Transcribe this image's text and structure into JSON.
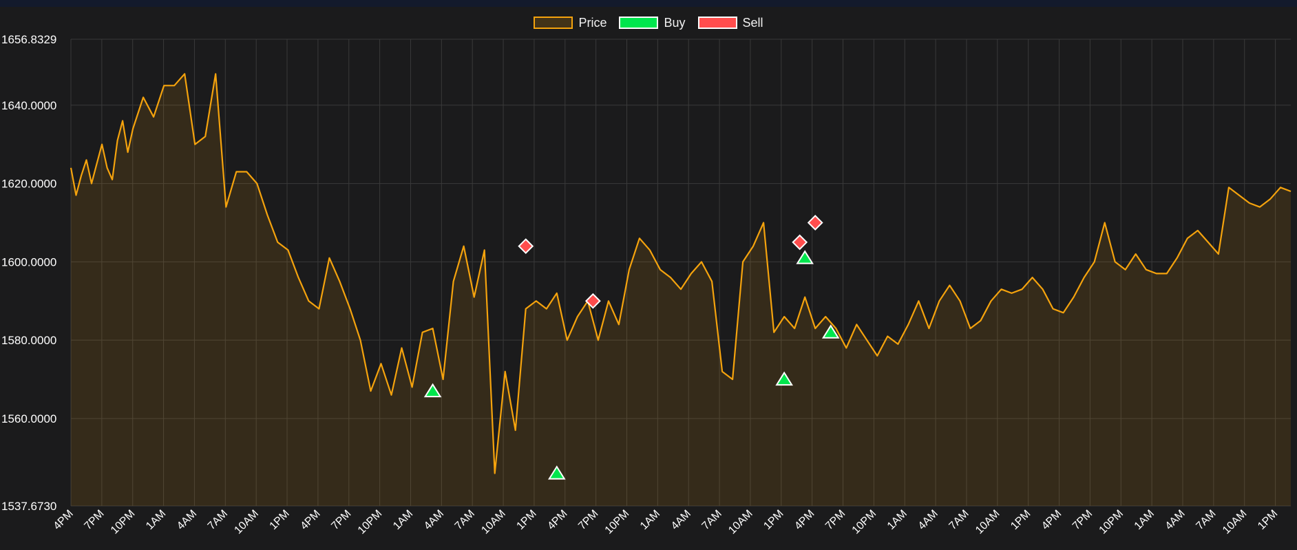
{
  "legend": [
    {
      "label": "Price",
      "color": "#f5a30d",
      "fill": "rgba(245,163,13,0.18)"
    },
    {
      "label": "Buy",
      "color": "#ffffff",
      "fill": "#00e64d"
    },
    {
      "label": "Sell",
      "color": "#ffffff",
      "fill": "#ff4d4d"
    }
  ],
  "chart_data": {
    "type": "line",
    "title": "",
    "xlabel": "",
    "ylabel": "",
    "ylim": [
      1537.673,
      1656.8329
    ],
    "y_ticks": [
      "1656.8329",
      "1640.0000",
      "1620.0000",
      "1600.0000",
      "1580.0000",
      "1560.0000",
      "1537.6730"
    ],
    "y_tick_values": [
      1656.8329,
      1640,
      1620,
      1600,
      1580,
      1560,
      1537.673
    ],
    "x_ticks": [
      "4PM",
      "7PM",
      "10PM",
      "1AM",
      "4AM",
      "7AM",
      "10AM",
      "1PM",
      "4PM",
      "7PM",
      "10PM",
      "1AM",
      "4AM",
      "7AM",
      "10AM",
      "1PM",
      "4PM",
      "7PM",
      "10PM",
      "1AM",
      "4AM",
      "7AM",
      "10AM",
      "1PM",
      "4PM",
      "7PM",
      "10PM",
      "1AM",
      "4AM",
      "7AM",
      "10AM",
      "1PM",
      "4PM",
      "7PM",
      "10PM",
      "1AM",
      "4AM",
      "7AM",
      "10AM",
      "1PM"
    ],
    "x_range": [
      0,
      118
    ],
    "grid": true,
    "legend_position": "top-center",
    "colors": {
      "price": "#f5a30d",
      "buy": "#00e64d",
      "sell": "#ff4d4d",
      "grid": "#3a3a3a"
    },
    "series": [
      {
        "name": "Price",
        "x": [
          0,
          0.5,
          1,
          1.5,
          2,
          2.5,
          3,
          3.5,
          4,
          4.5,
          5,
          5.5,
          6,
          7,
          8,
          9,
          10,
          11,
          12,
          13,
          14,
          15,
          16,
          17,
          18,
          19,
          20,
          21,
          22,
          23,
          24,
          25,
          26,
          27,
          28,
          29,
          30,
          31,
          32,
          33,
          34,
          35,
          36,
          37,
          38,
          39,
          40,
          41,
          42,
          43,
          44,
          45,
          46,
          47,
          48,
          49,
          50,
          51,
          52,
          53,
          54,
          55,
          56,
          57,
          58,
          59,
          60,
          61,
          62,
          63,
          64,
          65,
          66,
          67,
          68,
          69,
          70,
          71,
          72,
          73,
          74,
          75,
          76,
          77,
          78,
          79,
          80,
          81,
          82,
          83,
          84,
          85,
          86,
          87,
          88,
          89,
          90,
          91,
          92,
          93,
          94,
          95,
          96,
          97,
          98,
          99,
          100,
          101,
          102,
          103,
          104,
          105,
          106,
          107,
          108,
          109,
          110,
          111,
          112,
          113,
          114,
          115,
          116,
          117,
          118
        ],
        "values": [
          1624,
          1617,
          1622,
          1626,
          1620,
          1625,
          1630,
          1624,
          1621,
          1631,
          1636,
          1628,
          1634,
          1642,
          1637,
          1645,
          1645,
          1648,
          1630,
          1632,
          1648,
          1614,
          1623,
          1623,
          1620,
          1612,
          1605,
          1603,
          1596,
          1590,
          1588,
          1601,
          1595,
          1588,
          1580,
          1567,
          1574,
          1566,
          1578,
          1568,
          1582,
          1583,
          1570,
          1595,
          1604,
          1591,
          1603,
          1546,
          1572,
          1557,
          1588,
          1590,
          1588,
          1592,
          1580,
          1586,
          1590,
          1580,
          1590,
          1584,
          1598,
          1606,
          1603,
          1598,
          1596,
          1593,
          1597,
          1600,
          1595,
          1572,
          1570,
          1600,
          1604,
          1610,
          1582,
          1586,
          1583,
          1591,
          1583,
          1586,
          1583,
          1578,
          1584,
          1580,
          1576,
          1581,
          1579,
          1584,
          1590,
          1583,
          1590,
          1594,
          1590,
          1583,
          1585,
          1590,
          1593,
          1592,
          1593,
          1596,
          1593,
          1588,
          1587,
          1591,
          1596,
          1600,
          1610,
          1600,
          1598,
          1602,
          1598,
          1597,
          1597,
          1601,
          1606,
          1608,
          1605,
          1602,
          1619,
          1617,
          1615,
          1614,
          1616,
          1619,
          1618
        ]
      }
    ],
    "markers": {
      "buy": [
        {
          "x": 35,
          "y": 1567
        },
        {
          "x": 47,
          "y": 1546
        },
        {
          "x": 69,
          "y": 1570
        },
        {
          "x": 71,
          "y": 1601
        },
        {
          "x": 73.5,
          "y": 1582
        }
      ],
      "sell": [
        {
          "x": 44,
          "y": 1604
        },
        {
          "x": 50.5,
          "y": 1590
        },
        {
          "x": 70.5,
          "y": 1605
        },
        {
          "x": 72,
          "y": 1610
        }
      ]
    }
  }
}
